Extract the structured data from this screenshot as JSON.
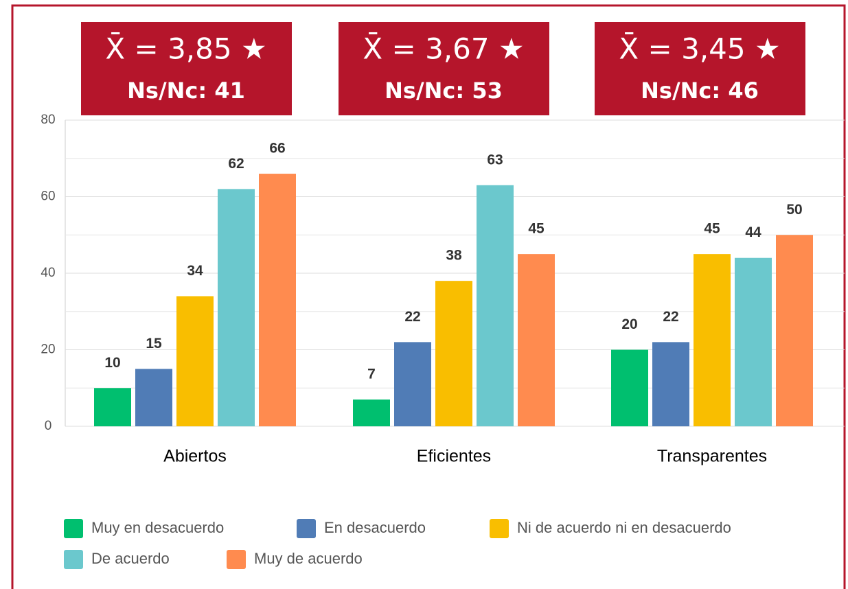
{
  "chart_data": {
    "type": "bar",
    "categories": [
      "Abiertos",
      "Eficientes",
      "Transparentes"
    ],
    "series": [
      {
        "name": "Muy en desacuerdo",
        "color": "#00bf6f",
        "values": [
          10,
          7,
          20
        ]
      },
      {
        "name": "En desacuerdo",
        "color": "#507cb6",
        "values": [
          15,
          22,
          22
        ]
      },
      {
        "name": "Ni de acuerdo ni en desacuerdo",
        "color": "#f9be00",
        "values": [
          34,
          38,
          45
        ]
      },
      {
        "name": "De acuerdo",
        "color": "#6bc8cd",
        "values": [
          62,
          63,
          44
        ]
      },
      {
        "name": "Muy de acuerdo",
        "color": "#ff8b4f",
        "values": [
          66,
          45,
          50
        ]
      }
    ],
    "ylim": [
      0,
      80
    ],
    "yticks": [
      0,
      20,
      40,
      60,
      80
    ],
    "minor_grid": [
      10,
      30,
      50,
      70
    ],
    "grid": true,
    "annotations": [
      {
        "mean": "X̄ = 3,85 ★",
        "ns": "Ns/Nc: 41"
      },
      {
        "mean": "X̄ = 3,67 ★",
        "ns": "Ns/Nc: 53"
      },
      {
        "mean": "X̄ = 3,45 ★",
        "ns": "Ns/Nc: 46"
      }
    ],
    "annotation_color": "#b5152b",
    "legend": "bottom"
  }
}
